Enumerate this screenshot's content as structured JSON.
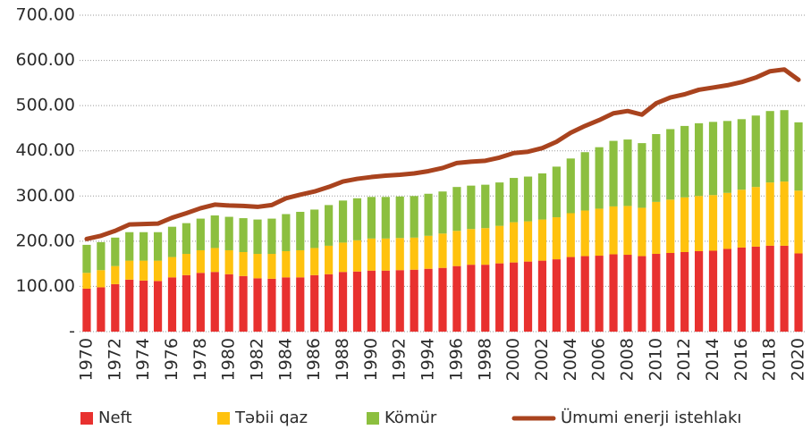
{
  "chart_data": {
    "type": "bar",
    "stacked": true,
    "categories": [
      "1970",
      null,
      "1972",
      null,
      "1974",
      null,
      "1976",
      null,
      "1978",
      null,
      "1980",
      null,
      "1982",
      null,
      "1984",
      null,
      "1986",
      null,
      "1988",
      null,
      "1990",
      null,
      "1992",
      null,
      "1994",
      null,
      "1996",
      null,
      "1998",
      null,
      "2000",
      null,
      "2002",
      null,
      "2004",
      null,
      "2006",
      null,
      "2008",
      null,
      "2010",
      null,
      "2012",
      null,
      "2014",
      null,
      "2016",
      null,
      "2018",
      null,
      "2020"
    ],
    "series": [
      {
        "name": "Neft",
        "color": "#e8312f",
        "values": [
          95,
          98,
          105,
          115,
          113,
          112,
          120,
          125,
          130,
          132,
          127,
          123,
          118,
          117,
          120,
          120,
          125,
          127,
          132,
          133,
          135,
          135,
          136,
          137,
          139,
          141,
          145,
          148,
          148,
          151,
          153,
          155,
          157,
          160,
          165,
          167,
          168,
          171,
          170,
          167,
          172,
          174,
          176,
          178,
          179,
          183,
          186,
          188,
          190,
          190,
          173
        ]
      },
      {
        "name": "Təbii qaz",
        "color": "#ffc20e",
        "values": [
          35,
          38,
          40,
          42,
          44,
          45,
          45,
          47,
          50,
          53,
          53,
          53,
          54,
          55,
          58,
          60,
          60,
          63,
          65,
          69,
          71,
          71,
          71,
          71,
          73,
          76,
          78,
          79,
          81,
          83,
          89,
          89,
          91,
          93,
          97,
          101,
          104,
          106,
          108,
          107,
          115,
          118,
          121,
          122,
          123,
          124,
          128,
          132,
          140,
          142,
          139
        ]
      },
      {
        "name": "Kömür",
        "color": "#8cbf3f",
        "values": [
          62,
          62,
          63,
          63,
          63,
          63,
          67,
          68,
          70,
          72,
          74,
          75,
          76,
          78,
          82,
          85,
          85,
          90,
          93,
          93,
          92,
          92,
          92,
          92,
          93,
          93,
          97,
          96,
          96,
          96,
          98,
          99,
          102,
          112,
          121,
          129,
          136,
          145,
          147,
          143,
          150,
          156,
          158,
          161,
          162,
          159,
          156,
          158,
          158,
          158,
          151
        ]
      },
      {
        "name": "Ümumi enerji istehlakı",
        "color": "#a9431e",
        "type": "line",
        "values": [
          205,
          212,
          223,
          237,
          238,
          239,
          252,
          262,
          273,
          281,
          279,
          278,
          276,
          280,
          295,
          303,
          310,
          320,
          332,
          338,
          342,
          345,
          347,
          350,
          355,
          362,
          373,
          376,
          378,
          385,
          395,
          398,
          406,
          420,
          440,
          455,
          468,
          483,
          488,
          480,
          505,
          518,
          525,
          535,
          540,
          545,
          552,
          562,
          576,
          580,
          557
        ]
      }
    ],
    "ylim": [
      0,
      700
    ],
    "yticks": [
      {
        "value": 0,
        "label": "-"
      },
      {
        "value": 100,
        "label": "100.00"
      },
      {
        "value": 200,
        "label": "200.00"
      },
      {
        "value": 300,
        "label": "300.00"
      },
      {
        "value": 400,
        "label": "400.00"
      },
      {
        "value": 500,
        "label": "500.00"
      },
      {
        "value": 600,
        "label": "600.00"
      },
      {
        "value": 700,
        "label": "700.00"
      }
    ],
    "grid": true,
    "legend": "bottom"
  }
}
